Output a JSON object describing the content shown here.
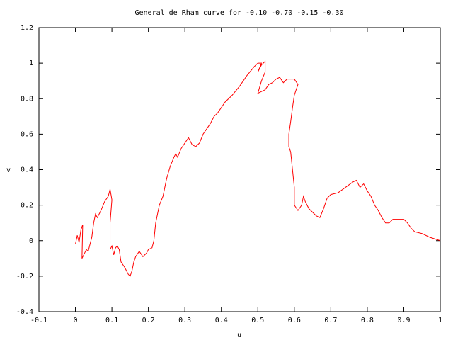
{
  "chart_data": {
    "type": "line",
    "title": "General de Rham curve for -0.10 -0.70 -0.15 -0.30",
    "xlabel": "u",
    "ylabel": "v",
    "color": "#ff0000",
    "xlim": [
      -0.1,
      1
    ],
    "xticks": [
      -0.1,
      0,
      0.1,
      0.2,
      0.3,
      0.4,
      0.5,
      0.6,
      0.7,
      0.8,
      0.9,
      1
    ],
    "ylim": [
      -0.4,
      1.2
    ],
    "yticks": [
      -0.4,
      -0.2,
      0,
      0.2,
      0.4,
      0.6,
      0.8,
      1,
      1.2
    ],
    "x": [
      0.0,
      0.005,
      0.01,
      0.015,
      0.02,
      0.018,
      0.03,
      0.035,
      0.045,
      0.05,
      0.055,
      0.06,
      0.07,
      0.08,
      0.09,
      0.095,
      0.1,
      0.095,
      0.095,
      0.1,
      0.105,
      0.11,
      0.115,
      0.12,
      0.125,
      0.135,
      0.145,
      0.15,
      0.155,
      0.16,
      0.165,
      0.175,
      0.185,
      0.195,
      0.2,
      0.21,
      0.215,
      0.22,
      0.23,
      0.24,
      0.25,
      0.26,
      0.27,
      0.275,
      0.28,
      0.29,
      0.3,
      0.31,
      0.32,
      0.33,
      0.34,
      0.35,
      0.37,
      0.38,
      0.39,
      0.41,
      0.43,
      0.45,
      0.47,
      0.49,
      0.5,
      0.51,
      0.5,
      0.505,
      0.51,
      0.52,
      0.52,
      0.51,
      0.5,
      0.51,
      0.52,
      0.53,
      0.54,
      0.55,
      0.56,
      0.57,
      0.58,
      0.6,
      0.61,
      0.6,
      0.595,
      0.59,
      0.585,
      0.585,
      0.59,
      0.595,
      0.6,
      0.6,
      0.61,
      0.62,
      0.625,
      0.63,
      0.64,
      0.66,
      0.67,
      0.68,
      0.69,
      0.7,
      0.72,
      0.74,
      0.76,
      0.77,
      0.78,
      0.79,
      0.8,
      0.81,
      0.82,
      0.83,
      0.84,
      0.85,
      0.86,
      0.87,
      0.88,
      0.9,
      0.91,
      0.92,
      0.93,
      0.95,
      0.97,
      1.0
    ],
    "values": [
      -0.02,
      0.03,
      -0.01,
      0.06,
      0.09,
      -0.1,
      -0.05,
      -0.06,
      0.02,
      0.1,
      0.15,
      0.13,
      0.17,
      0.22,
      0.25,
      0.29,
      0.23,
      0.1,
      -0.05,
      -0.03,
      -0.08,
      -0.04,
      -0.03,
      -0.05,
      -0.12,
      -0.15,
      -0.19,
      -0.2,
      -0.17,
      -0.12,
      -0.09,
      -0.06,
      -0.09,
      -0.07,
      -0.05,
      -0.04,
      0.0,
      0.1,
      0.2,
      0.25,
      0.35,
      0.42,
      0.47,
      0.49,
      0.47,
      0.52,
      0.55,
      0.58,
      0.54,
      0.53,
      0.55,
      0.6,
      0.66,
      0.7,
      0.72,
      0.78,
      0.82,
      0.87,
      0.93,
      0.98,
      1.0,
      1.0,
      0.95,
      0.97,
      0.99,
      1.01,
      0.95,
      0.9,
      0.83,
      0.84,
      0.85,
      0.88,
      0.89,
      0.91,
      0.92,
      0.89,
      0.91,
      0.91,
      0.88,
      0.82,
      0.75,
      0.67,
      0.6,
      0.53,
      0.5,
      0.4,
      0.3,
      0.2,
      0.17,
      0.2,
      0.25,
      0.22,
      0.18,
      0.14,
      0.13,
      0.18,
      0.24,
      0.26,
      0.27,
      0.3,
      0.33,
      0.34,
      0.3,
      0.32,
      0.28,
      0.25,
      0.2,
      0.17,
      0.13,
      0.1,
      0.1,
      0.12,
      0.12,
      0.12,
      0.1,
      0.07,
      0.05,
      0.04,
      0.02,
      0.0
    ]
  }
}
